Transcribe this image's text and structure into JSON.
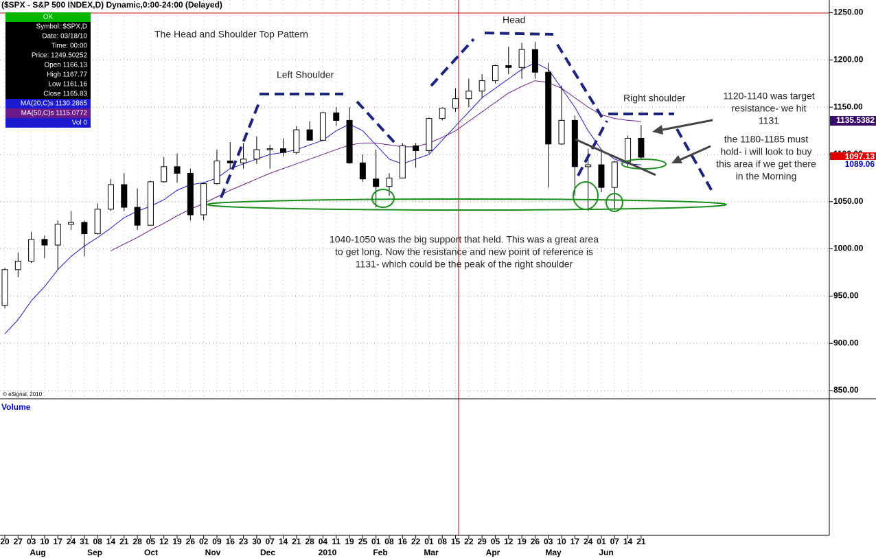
{
  "chart_data": {
    "type": "candlestick",
    "title": "($SPX - S&P 500 INDEX,D) Dynamic,0:00-24:00 (Delayed)",
    "categories": [
      "20",
      "27",
      "03",
      "10",
      "17",
      "24",
      "31",
      "08",
      "14",
      "21",
      "28",
      "05",
      "12",
      "19",
      "26",
      "02",
      "09",
      "16",
      "23",
      "30",
      "07",
      "14",
      "21",
      "28",
      "04",
      "11",
      "19",
      "25",
      "01",
      "08",
      "16",
      "22",
      "01",
      "08",
      "15",
      "22",
      "29",
      "05",
      "12",
      "19",
      "26",
      "03",
      "10",
      "17",
      "24",
      "01",
      "07",
      "14",
      "21"
    ],
    "months": [
      "Aug",
      "Sep",
      "Oct",
      "Nov",
      "Dec",
      "2010",
      "Feb",
      "Mar",
      "Apr",
      "May",
      "Jun"
    ],
    "open": [
      940,
      978,
      987,
      1010,
      1004,
      1026,
      1028,
      1016,
      1042,
      1068,
      1044,
      1025,
      1071,
      1087,
      1080,
      1036,
      1069,
      1093,
      1091,
      1095,
      1105,
      1106,
      1102,
      1126,
      1115,
      1144,
      1136,
      1091,
      1074,
      1066,
      1075,
      1109,
      1104,
      1138,
      1149,
      1159,
      1167,
      1178,
      1194,
      1192,
      1211,
      1187,
      1111,
      1136,
      1087,
      1089,
      1065,
      1092,
      1117
    ],
    "high": [
      980,
      996,
      1018,
      1014,
      1030,
      1040,
      1030,
      1048,
      1074,
      1080,
      1064,
      1072,
      1097,
      1101,
      1085,
      1070,
      1105,
      1113,
      1112,
      1119,
      1110,
      1117,
      1130,
      1135,
      1145,
      1150,
      1150,
      1100,
      1105,
      1080,
      1112,
      1112,
      1139,
      1150,
      1170,
      1180,
      1185,
      1195,
      1214,
      1218,
      1219,
      1197,
      1173,
      1141,
      1106,
      1105,
      1093,
      1120,
      1131
    ],
    "low": [
      937,
      970,
      985,
      990,
      978,
      1020,
      992,
      1015,
      1040,
      1040,
      1020,
      1025,
      1070,
      1070,
      1030,
      1030,
      1068,
      1085,
      1085,
      1090,
      1085,
      1098,
      1100,
      1115,
      1114,
      1130,
      1090,
      1071,
      1044,
      1056,
      1075,
      1086,
      1101,
      1136,
      1145,
      1150,
      1160,
      1175,
      1185,
      1180,
      1180,
      1065,
      1110,
      1056,
      1040,
      1060,
      1042,
      1087,
      1094
    ],
    "close": [
      978,
      987,
      1010,
      1004,
      1026,
      1028,
      1016,
      1042,
      1068,
      1044,
      1025,
      1071,
      1087,
      1080,
      1036,
      1069,
      1093,
      1091,
      1095,
      1105,
      1106,
      1102,
      1126,
      1115,
      1144,
      1136,
      1091,
      1074,
      1066,
      1075,
      1109,
      1104,
      1138,
      1149,
      1159,
      1167,
      1178,
      1194,
      1192,
      1211,
      1187,
      1111,
      1136,
      1087,
      1089,
      1065,
      1092,
      1117,
      1097
    ],
    "up_color": "#ffffff",
    "down_color": "#000000",
    "series": [
      {
        "name": "MA(20,C)s",
        "color": "#1a1ad0",
        "values": [
          910,
          925,
          945,
          960,
          978,
          992,
          1003,
          1012,
          1022,
          1033,
          1040,
          1045,
          1052,
          1062,
          1068,
          1070,
          1075,
          1085,
          1090,
          1095,
          1100,
          1102,
          1105,
          1110,
          1115,
          1125,
          1132,
          1125,
          1110,
          1095,
          1090,
          1095,
          1100,
          1115,
          1130,
          1145,
          1160,
          1170,
          1180,
          1190,
          1197,
          1190,
          1170,
          1150,
          1125,
          1105,
          1095,
          1090,
          1089
        ]
      },
      {
        "name": "MA(50,C)s",
        "color": "#6a1a8a",
        "values": [
          null,
          null,
          null,
          null,
          null,
          null,
          null,
          null,
          998,
          1005,
          1012,
          1020,
          1027,
          1035,
          1042,
          1048,
          1055,
          1062,
          1068,
          1074,
          1080,
          1085,
          1090,
          1095,
          1100,
          1105,
          1110,
          1112,
          1112,
          1110,
          1108,
          1108,
          1112,
          1118,
          1125,
          1135,
          1145,
          1155,
          1165,
          1172,
          1178,
          1176,
          1170,
          1160,
          1150,
          1142,
          1138,
          1136,
          1135
        ]
      }
    ],
    "ylim": [
      842,
      1262
    ],
    "yticks": [
      {
        "value": 850,
        "label": "850.00"
      },
      {
        "value": 900,
        "label": "900.00"
      },
      {
        "value": 950,
        "label": "950.00"
      },
      {
        "value": 1000,
        "label": "1000.00"
      },
      {
        "value": 1050,
        "label": "1050.00"
      },
      {
        "value": 1100,
        "label": "1100.00"
      },
      {
        "value": 1150,
        "label": "1150.00"
      },
      {
        "value": 1200,
        "label": "1200.00"
      },
      {
        "value": 1250,
        "label": "1250.00"
      }
    ],
    "grid": true,
    "price_tags": [
      {
        "value": 1135.5382,
        "label": "1135.5382",
        "color": "#3a0a6a"
      },
      {
        "value": 1097.13,
        "label": "1097.13",
        "color": "#e00000"
      },
      {
        "value": 1089.06,
        "label": "1089.06",
        "color": "#0000c0"
      }
    ],
    "info_box": [
      "OK",
      "Symbol: $SPX,D",
      "Date: 03/18/10",
      "Time: 00:00",
      "Price: 1249.50252",
      "Open 1166.13",
      "High 1167.77",
      "Low 1161.16",
      "Close 1165.83",
      "MA(20,C)s 1130.2865",
      "MA(50,C)s 1115.0772",
      "Vol 0"
    ],
    "annotations": [
      [
        "The Head and Shoulder Top Pattern"
      ],
      [
        "Left Shoulder"
      ],
      [
        "Head"
      ],
      [
        "Right shoulder"
      ],
      [
        "1120-1140 was target",
        "resistance- we hit",
        "1131"
      ],
      [
        "the 1180-1185 must",
        "hold- i will look to buy",
        "this area if we get there",
        "in the Morning"
      ],
      [
        "1040-1050 was the big support that held.  This was a great area",
        "to get long.  Now the resistance and new point of reference is",
        "1131- which could be the peak of the right shoulder"
      ]
    ],
    "copyright": "© eSignal, 2010",
    "volume_label": "Volume"
  }
}
